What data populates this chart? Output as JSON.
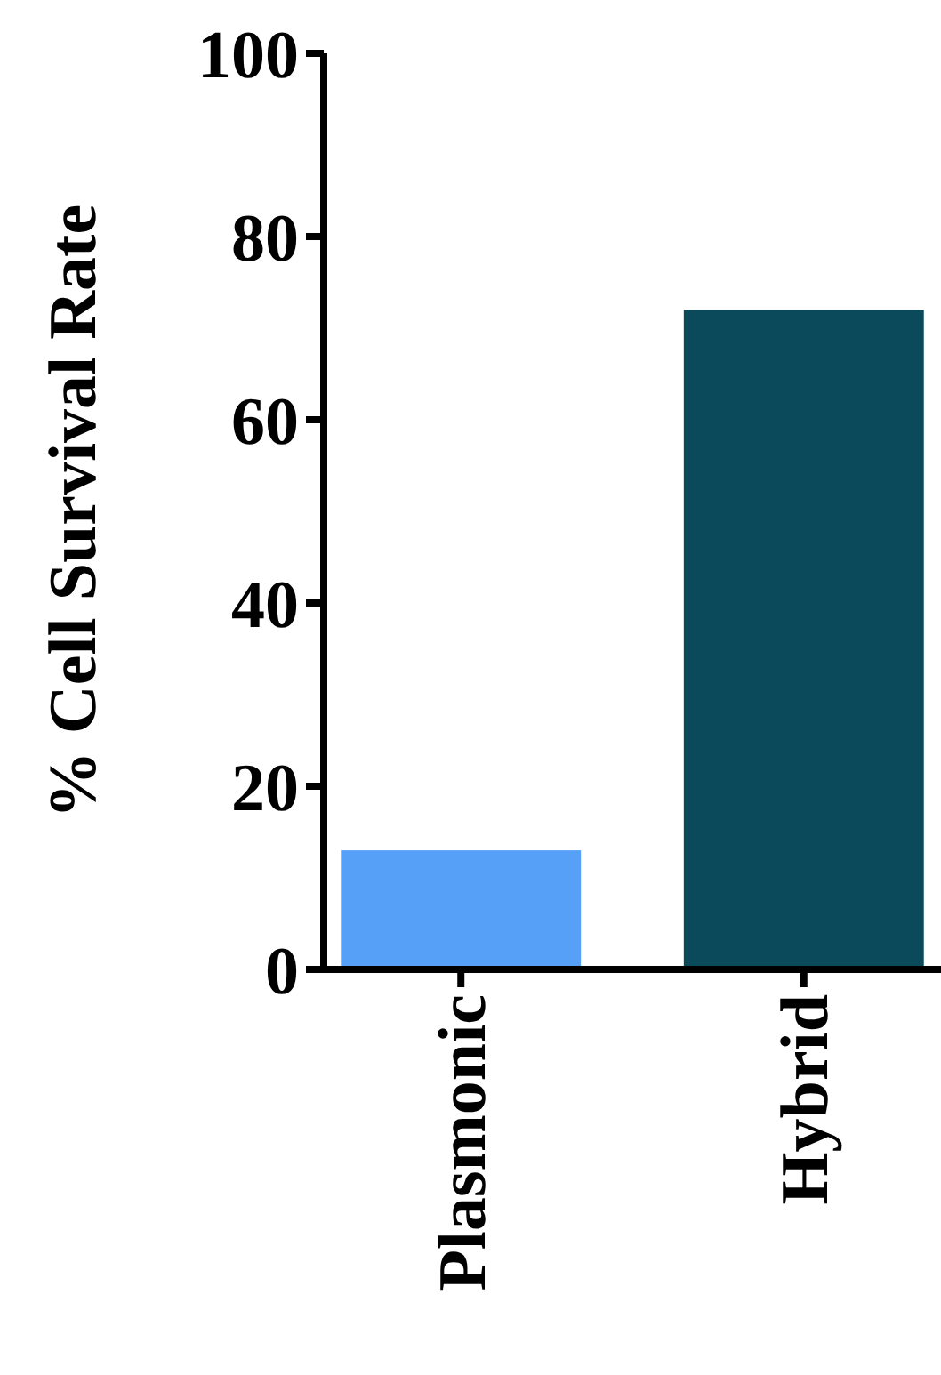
{
  "chart_data": {
    "type": "bar",
    "ylabel": "% Cell Survival Rate",
    "categories": [
      "Plasmonic",
      "Hybrid"
    ],
    "values": [
      13,
      72
    ],
    "colors": [
      "#56a0f8",
      "#0b4a5b"
    ],
    "ylim": [
      0,
      100
    ],
    "yticks": [
      0,
      20,
      40,
      60,
      80,
      100
    ],
    "grid": false
  }
}
